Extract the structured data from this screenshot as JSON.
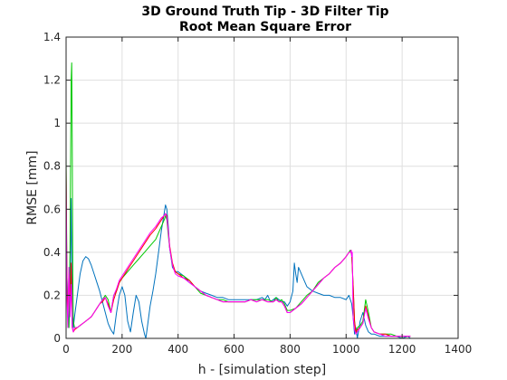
{
  "chart_data": {
    "type": "line",
    "title": [
      "3D Ground Truth Tip - 3D  Filter Tip",
      "Root Mean Square Error"
    ],
    "xlabel": "h - [simulation step]",
    "ylabel": "RMSE [mm]",
    "xlim": [
      0,
      1400
    ],
    "ylim": [
      0,
      1.4
    ],
    "xticks": [
      0,
      200,
      400,
      600,
      800,
      1000,
      1200,
      1400
    ],
    "xtick_labels": [
      "0",
      "200",
      "400",
      "600",
      "800",
      "1000",
      "1200",
      "1400"
    ],
    "yticks": [
      0,
      0.2,
      0.4,
      0.6,
      0.8,
      1.0,
      1.2,
      1.4
    ],
    "ytick_labels": [
      "0",
      "0.2",
      "0.4",
      "0.6",
      "0.8",
      "1",
      "1.2",
      "1.4"
    ],
    "grid": true,
    "series": [
      {
        "color": "#0072bd",
        "x": [
          0,
          3,
          6,
          10,
          14,
          18,
          22,
          26,
          30,
          40,
          50,
          60,
          70,
          80,
          90,
          100,
          110,
          120,
          130,
          140,
          150,
          160,
          170,
          180,
          190,
          200,
          210,
          220,
          230,
          240,
          250,
          260,
          270,
          280,
          285,
          290,
          300,
          310,
          320,
          330,
          340,
          350,
          355,
          360,
          365,
          370,
          380,
          390,
          400,
          420,
          440,
          460,
          480,
          500,
          520,
          540,
          560,
          580,
          600,
          620,
          640,
          660,
          680,
          700,
          710,
          720,
          730,
          740,
          750,
          760,
          770,
          780,
          790,
          800,
          810,
          815,
          820,
          825,
          830,
          840,
          850,
          860,
          880,
          900,
          920,
          940,
          960,
          980,
          1000,
          1010,
          1020,
          1025,
          1030,
          1035,
          1040,
          1050,
          1060,
          1070,
          1080,
          1090,
          1100,
          1120,
          1140,
          1160,
          1180,
          1200,
          1220,
          1230
        ],
        "y": [
          0.55,
          0.3,
          0.15,
          0.05,
          0.2,
          0.65,
          0.1,
          0.05,
          0.1,
          0.2,
          0.3,
          0.36,
          0.38,
          0.37,
          0.34,
          0.3,
          0.26,
          0.22,
          0.17,
          0.12,
          0.07,
          0.04,
          0.02,
          0.12,
          0.2,
          0.24,
          0.2,
          0.08,
          0.03,
          0.12,
          0.2,
          0.17,
          0.08,
          0.02,
          0.0,
          0.05,
          0.15,
          0.22,
          0.3,
          0.4,
          0.5,
          0.58,
          0.62,
          0.6,
          0.52,
          0.42,
          0.33,
          0.31,
          0.31,
          0.29,
          0.26,
          0.24,
          0.22,
          0.21,
          0.2,
          0.19,
          0.19,
          0.18,
          0.18,
          0.18,
          0.18,
          0.18,
          0.18,
          0.19,
          0.18,
          0.2,
          0.17,
          0.18,
          0.19,
          0.18,
          0.17,
          0.17,
          0.15,
          0.17,
          0.22,
          0.35,
          0.3,
          0.26,
          0.33,
          0.3,
          0.27,
          0.24,
          0.22,
          0.21,
          0.2,
          0.2,
          0.19,
          0.19,
          0.18,
          0.2,
          0.16,
          0.1,
          0.02,
          0.05,
          0.0,
          0.08,
          0.12,
          0.06,
          0.03,
          0.02,
          0.02,
          0.01,
          0.01,
          0.01,
          0.01,
          0.0,
          0.01,
          0.0
        ]
      },
      {
        "color": "#00c800",
        "x": [
          0,
          3,
          6,
          10,
          14,
          18,
          20,
          22,
          24,
          26,
          30,
          40,
          50,
          60,
          70,
          80,
          90,
          100,
          110,
          120,
          130,
          140,
          150,
          160,
          170,
          180,
          190,
          200,
          220,
          240,
          260,
          280,
          300,
          320,
          340,
          350,
          355,
          360,
          365,
          370,
          380,
          390,
          400,
          420,
          440,
          460,
          480,
          500,
          520,
          540,
          560,
          580,
          600,
          620,
          640,
          660,
          680,
          700,
          720,
          740,
          750,
          760,
          770,
          780,
          790,
          800,
          820,
          840,
          860,
          880,
          900,
          920,
          940,
          960,
          980,
          1000,
          1010,
          1015,
          1018,
          1020,
          1025,
          1030,
          1035,
          1040,
          1050,
          1060,
          1070,
          1080,
          1090,
          1100,
          1120,
          1140,
          1160,
          1180,
          1200,
          1220,
          1230
        ],
        "y": [
          0.85,
          0.3,
          0.1,
          0.05,
          0.4,
          1.2,
          1.28,
          0.9,
          0.3,
          0.08,
          0.05,
          0.05,
          0.06,
          0.07,
          0.08,
          0.09,
          0.1,
          0.12,
          0.14,
          0.16,
          0.18,
          0.2,
          0.18,
          0.12,
          0.2,
          0.22,
          0.26,
          0.28,
          0.31,
          0.34,
          0.37,
          0.4,
          0.43,
          0.46,
          0.52,
          0.55,
          0.57,
          0.55,
          0.48,
          0.42,
          0.34,
          0.31,
          0.3,
          0.29,
          0.27,
          0.24,
          0.21,
          0.2,
          0.19,
          0.18,
          0.18,
          0.17,
          0.17,
          0.17,
          0.17,
          0.18,
          0.18,
          0.18,
          0.18,
          0.17,
          0.19,
          0.17,
          0.18,
          0.16,
          0.13,
          0.13,
          0.14,
          0.17,
          0.2,
          0.22,
          0.26,
          0.28,
          0.3,
          0.33,
          0.35,
          0.38,
          0.4,
          0.41,
          0.4,
          0.38,
          0.25,
          0.08,
          0.02,
          0.05,
          0.06,
          0.08,
          0.18,
          0.12,
          0.05,
          0.03,
          0.02,
          0.02,
          0.02,
          0.01,
          0.01,
          0.01,
          0.01
        ]
      },
      {
        "color": "#ff0000",
        "x": [
          0,
          3,
          6,
          10,
          14,
          18,
          22,
          26,
          30,
          40,
          50,
          60,
          70,
          80,
          90,
          100,
          110,
          120,
          130,
          140,
          150,
          160,
          170,
          180,
          190,
          200,
          220,
          240,
          260,
          280,
          300,
          320,
          340,
          350,
          355,
          360,
          365,
          370,
          380,
          390,
          400,
          420,
          440,
          460,
          480,
          500,
          520,
          540,
          560,
          580,
          600,
          620,
          640,
          660,
          680,
          700,
          720,
          740,
          750,
          760,
          770,
          780,
          790,
          800,
          820,
          840,
          860,
          880,
          900,
          920,
          940,
          960,
          980,
          1000,
          1010,
          1015,
          1018,
          1020,
          1025,
          1030,
          1035,
          1040,
          1050,
          1060,
          1070,
          1080,
          1090,
          1100,
          1120,
          1140,
          1160,
          1180,
          1200,
          1220,
          1230
        ],
        "y": [
          0.8,
          0.25,
          0.1,
          0.3,
          0.15,
          0.35,
          0.05,
          0.03,
          0.04,
          0.05,
          0.06,
          0.07,
          0.08,
          0.09,
          0.1,
          0.12,
          0.14,
          0.16,
          0.17,
          0.19,
          0.16,
          0.12,
          0.18,
          0.22,
          0.26,
          0.28,
          0.32,
          0.36,
          0.4,
          0.44,
          0.48,
          0.51,
          0.55,
          0.57,
          0.58,
          0.57,
          0.5,
          0.43,
          0.35,
          0.31,
          0.3,
          0.28,
          0.27,
          0.24,
          0.22,
          0.2,
          0.19,
          0.18,
          0.17,
          0.17,
          0.17,
          0.17,
          0.17,
          0.18,
          0.17,
          0.18,
          0.17,
          0.17,
          0.18,
          0.17,
          0.17,
          0.15,
          0.12,
          0.12,
          0.14,
          0.16,
          0.19,
          0.22,
          0.25,
          0.28,
          0.3,
          0.33,
          0.35,
          0.38,
          0.4,
          0.4,
          0.41,
          0.39,
          0.25,
          0.08,
          0.03,
          0.04,
          0.05,
          0.07,
          0.15,
          0.1,
          0.05,
          0.03,
          0.02,
          0.02,
          0.01,
          0.01,
          0.01,
          0.01,
          0.01
        ]
      },
      {
        "color": "#ff00ff",
        "x": [
          0,
          3,
          6,
          10,
          14,
          18,
          22,
          26,
          30,
          40,
          50,
          60,
          70,
          80,
          90,
          100,
          110,
          120,
          130,
          140,
          150,
          160,
          170,
          180,
          190,
          200,
          220,
          240,
          260,
          280,
          300,
          320,
          340,
          350,
          355,
          360,
          365,
          370,
          380,
          390,
          400,
          420,
          440,
          460,
          480,
          500,
          520,
          540,
          560,
          580,
          600,
          620,
          640,
          660,
          680,
          700,
          720,
          740,
          750,
          760,
          770,
          780,
          790,
          800,
          820,
          840,
          860,
          880,
          900,
          920,
          940,
          960,
          980,
          1000,
          1010,
          1015,
          1018,
          1020,
          1022,
          1025,
          1030,
          1035,
          1040,
          1050,
          1060,
          1070,
          1080,
          1090,
          1100,
          1120,
          1140,
          1160,
          1180,
          1200,
          1220,
          1230
        ],
        "y": [
          0.75,
          0.2,
          0.05,
          0.33,
          0.1,
          0.25,
          0.05,
          0.03,
          0.05,
          0.05,
          0.06,
          0.07,
          0.08,
          0.09,
          0.1,
          0.12,
          0.14,
          0.16,
          0.18,
          0.19,
          0.15,
          0.12,
          0.2,
          0.23,
          0.27,
          0.29,
          0.33,
          0.37,
          0.41,
          0.45,
          0.49,
          0.52,
          0.56,
          0.57,
          0.58,
          0.56,
          0.5,
          0.42,
          0.34,
          0.3,
          0.29,
          0.28,
          0.26,
          0.24,
          0.22,
          0.2,
          0.19,
          0.18,
          0.17,
          0.17,
          0.17,
          0.17,
          0.17,
          0.18,
          0.17,
          0.18,
          0.17,
          0.17,
          0.18,
          0.17,
          0.17,
          0.15,
          0.12,
          0.12,
          0.14,
          0.16,
          0.19,
          0.22,
          0.25,
          0.28,
          0.3,
          0.33,
          0.35,
          0.38,
          0.4,
          0.4,
          0.41,
          0.38,
          0.4,
          0.1,
          0.04,
          0.02,
          0.03,
          0.05,
          0.07,
          0.14,
          0.09,
          0.05,
          0.03,
          0.02,
          0.01,
          0.01,
          0.01,
          0.01,
          0.01,
          0.01
        ]
      }
    ]
  }
}
